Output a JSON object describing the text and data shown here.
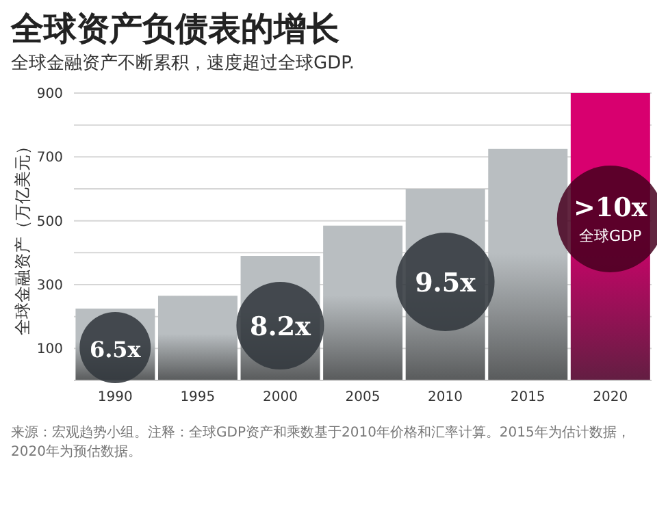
{
  "chart_data": {
    "type": "bar",
    "title": "全球资产负债表的增长",
    "subtitle": "全球金融资产不断累积，速度超过全球GDP.",
    "ylabel": "全球金融资产（万亿美元）",
    "categories": [
      "1990",
      "1995",
      "2000",
      "2005",
      "2010",
      "2015",
      "2020"
    ],
    "values": [
      225,
      265,
      390,
      485,
      600,
      725,
      900
    ],
    "colors": [
      "#b9bec1",
      "#b9bec1",
      "#b9bec1",
      "#b9bec1",
      "#b9bec1",
      "#b9bec1",
      "#d8006f"
    ],
    "ylim": [
      0,
      900
    ],
    "yticks": [
      100,
      {
        "value": 200,
        "label": null
      },
      300,
      {
        "value": 400,
        "label": null
      },
      500,
      {
        "value": 600,
        "label": null
      },
      700,
      {
        "value": 800,
        "label": null
      },
      900
    ],
    "grid": "y",
    "annotations": [
      "6.5x",
      "8.2x",
      "9.5x",
      ">10x\n全球GDP",
      "来源：宏观趋势小组。注释：全球GDP资产和乘数基于2010年价格和汇率计算。2015年为估计数据，2020年为预估数据。"
    ]
  }
}
